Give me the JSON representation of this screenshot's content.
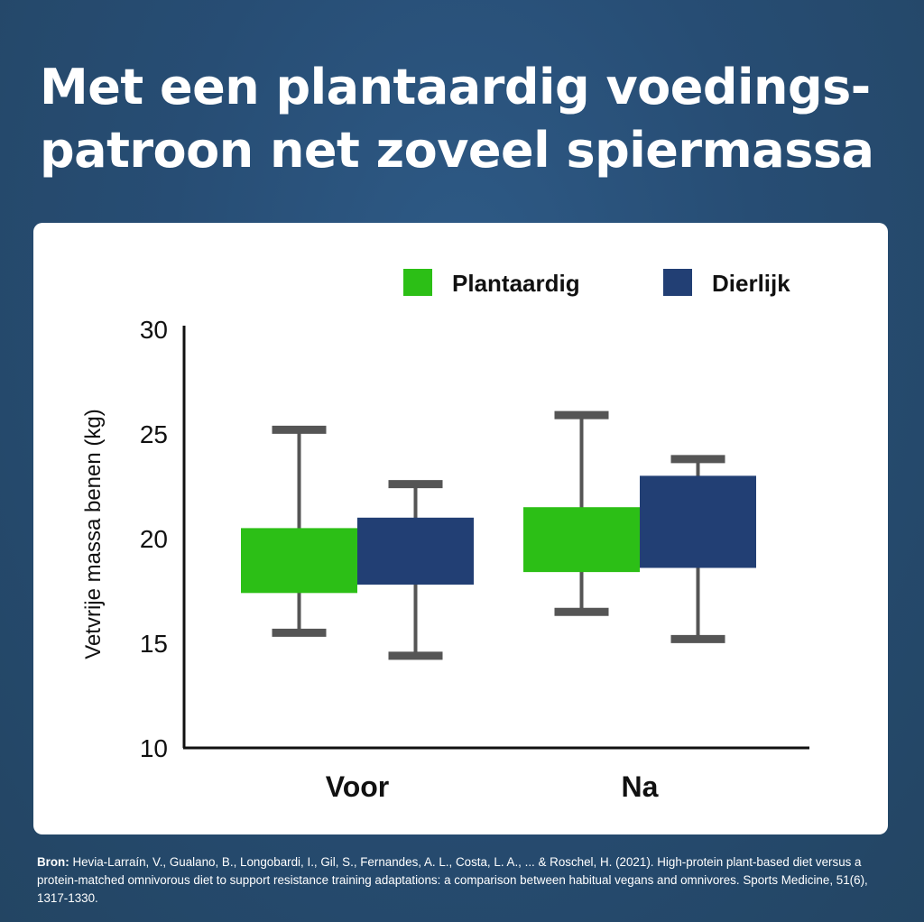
{
  "title_line1": "Met een plantaardig voedings-",
  "title_line2": "patroon net zoveel spiermassa",
  "source_label": "Bron:",
  "source_text": "Hevia-Larraín, V., Gualano, B., Longobardi, I., Gil, S., Fernandes, A. L., Costa, L. A., ... & Roschel, H. (2021). High-protein plant-based diet versus a protein-matched omnivorous diet to support resistance training adaptations: a comparison between habitual vegans and omnivores. Sports Medicine, 51(6), 1317-1330.",
  "chart_data": {
    "type": "boxplot",
    "categories": [
      "Voor",
      "Na"
    ],
    "ylabel": "Vetvrije massa benen  (kg)",
    "xlabel": "",
    "ylim": [
      10,
      30
    ],
    "yticks": [
      10,
      15,
      20,
      25,
      30
    ],
    "legend_position": "top-right",
    "series": [
      {
        "name": "Plantaardig",
        "color": "#2cbf16",
        "boxes": [
          {
            "category": "Voor",
            "whisker_low": 15.5,
            "q1": 17.4,
            "q3": 20.5,
            "whisker_high": 25.2
          },
          {
            "category": "Na",
            "whisker_low": 16.5,
            "q1": 18.4,
            "q3": 21.5,
            "whisker_high": 25.9
          }
        ]
      },
      {
        "name": "Dierlijk",
        "color": "#223f74",
        "boxes": [
          {
            "category": "Voor",
            "whisker_low": 14.4,
            "q1": 17.8,
            "q3": 21.0,
            "whisker_high": 22.6
          },
          {
            "category": "Na",
            "whisker_low": 15.2,
            "q1": 18.6,
            "q3": 23.0,
            "whisker_high": 23.8
          }
        ]
      }
    ]
  }
}
